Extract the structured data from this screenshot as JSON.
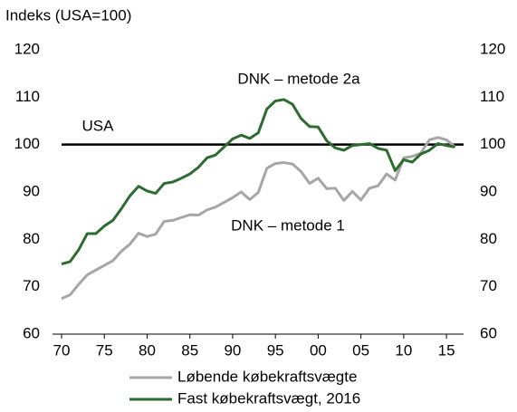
{
  "chart_data": {
    "type": "line",
    "y_label": "Indeks (USA=100)",
    "x": [
      1970,
      1971,
      1972,
      1973,
      1974,
      1975,
      1976,
      1977,
      1978,
      1979,
      1980,
      1981,
      1982,
      1983,
      1984,
      1985,
      1986,
      1987,
      1988,
      1989,
      1990,
      1991,
      1992,
      1993,
      1994,
      1995,
      1996,
      1997,
      1998,
      1999,
      2000,
      2001,
      2002,
      2003,
      2004,
      2005,
      2006,
      2007,
      2008,
      2009,
      2010,
      2011,
      2012,
      2013,
      2014,
      2015,
      2016
    ],
    "series": [
      {
        "name": "Løbende købekraftsvægte",
        "color": "#a6a6a6",
        "values": [
          67.5,
          68.3,
          70.5,
          72.5,
          73.5,
          74.5,
          75.5,
          77.5,
          79,
          81.3,
          80.6,
          81.1,
          83.8,
          84,
          84.6,
          85.2,
          85.1,
          86.2,
          86.8,
          87.8,
          88.8,
          90,
          88.4,
          89.9,
          95,
          96,
          96.2,
          95.9,
          94.3,
          91.8,
          92.9,
          90.7,
          90.8,
          88.2,
          90.1,
          88.3,
          90.8,
          91.3,
          93.8,
          92.5,
          97.2,
          97.5,
          98.2,
          101,
          101.5,
          101,
          99.5
        ]
      },
      {
        "name": "Fast købekraftsvægt, 2016",
        "color": "#2e6b30",
        "values": [
          74.8,
          75.3,
          77.8,
          81.2,
          81.2,
          82.8,
          84,
          86.5,
          89.2,
          91.2,
          90.2,
          89.7,
          91.8,
          92.1,
          92.9,
          93.8,
          95.2,
          97.2,
          97.8,
          99.5,
          101.2,
          102,
          101.3,
          102.5,
          107.5,
          109.2,
          109.5,
          108.5,
          105.5,
          103.8,
          103.7,
          100.8,
          99.3,
          98.8,
          99.8,
          100,
          100.2,
          99.2,
          98.8,
          94.5,
          96.8,
          96.3,
          98,
          98.8,
          100.2,
          99.8,
          99.5
        ]
      }
    ],
    "reference_line": {
      "value": 100,
      "color": "#000000"
    },
    "annotations": [
      "DNK – metode 2a",
      "USA",
      "DNK – metode 1"
    ],
    "xlim": [
      1970,
      2017
    ],
    "xticks": [
      {
        "value": 1970,
        "label": "70"
      },
      {
        "value": 1975,
        "label": "75"
      },
      {
        "value": 1980,
        "label": "80"
      },
      {
        "value": 1985,
        "label": "85"
      },
      {
        "value": 1990,
        "label": "90"
      },
      {
        "value": 1995,
        "label": "95"
      },
      {
        "value": 2000,
        "label": "00"
      },
      {
        "value": 2005,
        "label": "05"
      },
      {
        "value": 2010,
        "label": "10"
      },
      {
        "value": 2015,
        "label": "15"
      }
    ],
    "ylim": [
      60,
      120
    ],
    "yticks": [
      60,
      70,
      80,
      90,
      100,
      110,
      120
    ],
    "y2lim": [
      60,
      120
    ],
    "y2ticks": [
      60,
      70,
      80,
      90,
      100,
      110,
      120
    ],
    "grid": false
  }
}
